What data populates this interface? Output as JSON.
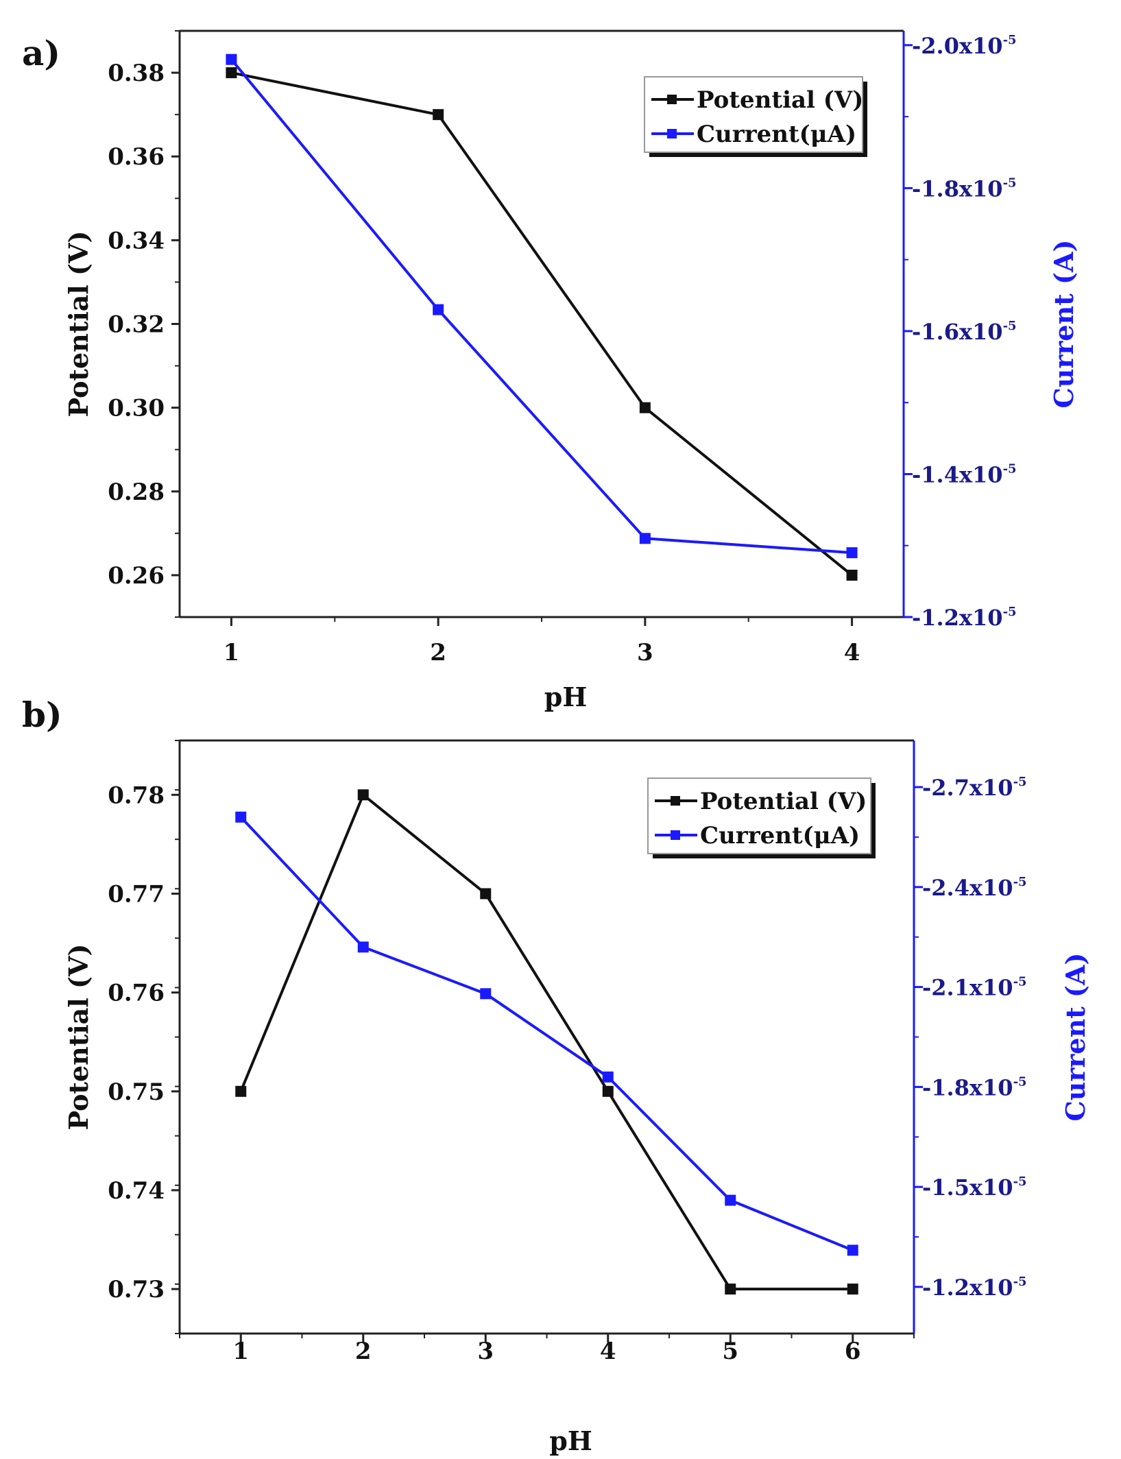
{
  "chart_data": [
    {
      "panel_label": "a)",
      "type": "line",
      "x": [
        1,
        2,
        3,
        4
      ],
      "xlabel": "pH",
      "xticks": [
        "1",
        "2",
        "3",
        "4"
      ],
      "ylabel": "Potential (V)",
      "y2label": "Current (A)",
      "yticks": [
        "0.26",
        "0.28",
        "0.30",
        "0.32",
        "0.34",
        "0.36",
        "0.38"
      ],
      "ytick_values": [
        0.26,
        0.28,
        0.3,
        0.32,
        0.34,
        0.36,
        0.38
      ],
      "y2ticks": [
        "-1.2x10",
        "-1.4x10",
        "-1.6x10",
        "-1.8x10",
        "-2.0x10"
      ],
      "y2tick_values": [
        -1.2e-05,
        -1.4e-05,
        -1.6e-05,
        -1.8e-05,
        -2e-05
      ],
      "y2tick_exponent": "-5",
      "series": [
        {
          "name": "Potential (V)",
          "axis": "left",
          "color": "#111111",
          "values": [
            0.38,
            0.37,
            0.3,
            0.26
          ]
        },
        {
          "name": "Current(μA)",
          "axis": "right",
          "color": "#1a1aff",
          "values": [
            -1.98e-05,
            -1.63e-05,
            -1.31e-05,
            -1.29e-05
          ]
        }
      ],
      "legend": [
        "Potential (V)",
        "Current(μA)"
      ],
      "legend_position": "top-right"
    },
    {
      "panel_label": "b)",
      "type": "line",
      "x": [
        1,
        2,
        3,
        4,
        5,
        6
      ],
      "xlabel": "pH",
      "xticks": [
        "1",
        "2",
        "3",
        "4",
        "5",
        "6"
      ],
      "ylabel": "Potential (V)",
      "y2label": "Current (A)",
      "yticks": [
        "0.73",
        "0.74",
        "0.75",
        "0.76",
        "0.77",
        "0.78"
      ],
      "ytick_values": [
        0.73,
        0.74,
        0.75,
        0.76,
        0.77,
        0.78
      ],
      "y2ticks": [
        "-1.2x10",
        "-1.5x10",
        "-1.8x10",
        "-2.1x10",
        "-2.4x10",
        "-2.7x10"
      ],
      "y2tick_values": [
        -1.2e-05,
        -1.5e-05,
        -1.8e-05,
        -2.1e-05,
        -2.4e-05,
        -2.7e-05
      ],
      "y2tick_exponent": "-5",
      "series": [
        {
          "name": "Potential (V)",
          "axis": "left",
          "color": "#111111",
          "values": [
            0.75,
            0.78,
            0.77,
            0.75,
            0.73,
            0.73
          ]
        },
        {
          "name": "Current(μA)",
          "axis": "right",
          "color": "#1a1aff",
          "values": [
            -2.61e-05,
            -2.22e-05,
            -2.08e-05,
            -1.83e-05,
            -1.46e-05,
            -1.31e-05
          ]
        }
      ],
      "legend": [
        "Potential (V)",
        "Current(μA)"
      ],
      "legend_position": "top-right"
    }
  ]
}
